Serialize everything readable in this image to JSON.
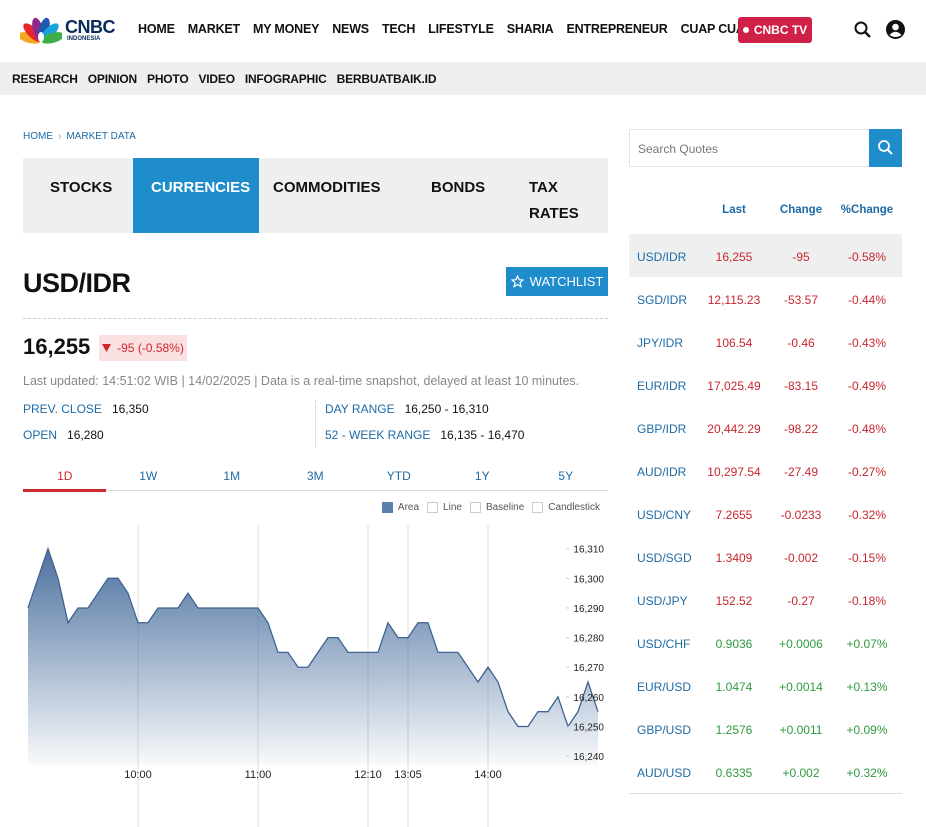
{
  "header": {
    "logo": "CNBC",
    "logo_sub": "INDONESIA",
    "nav": [
      "HOME",
      "MARKET",
      "MY MONEY",
      "NEWS",
      "TECH",
      "LIFESTYLE",
      "SHARIA",
      "ENTREPRENEUR",
      "CUAP CUAP CUAN"
    ],
    "tv_button": "CNBC TV",
    "subnav": [
      "RESEARCH",
      "OPINION",
      "PHOTO",
      "VIDEO",
      "INFOGRAPHIC",
      "BERBUATBAIK.ID"
    ]
  },
  "breadcrumb": [
    "HOME",
    "MARKET DATA"
  ],
  "tabs": [
    "STOCKS",
    "CURRENCIES",
    "COMMODITIES",
    "BONDS",
    "TAX RATES"
  ],
  "active_tab": 1,
  "quote": {
    "symbol": "USD/IDR",
    "watchlist": "WATCHLIST",
    "price": "16,255",
    "change": "-95 (-0.58%)",
    "updated": "Last updated: 14:51:02 WIB | 14/02/2025 | Data is a real-time snapshot, delayed at least 10 minutes.",
    "stats": [
      {
        "label": "PREV. CLOSE",
        "value": "16,350"
      },
      {
        "label": "DAY RANGE",
        "value": "16,250 - 16,310"
      },
      {
        "label": "OPEN",
        "value": "16,280"
      },
      {
        "label": "52 - WEEK RANGE",
        "value": "16,135 - 16,470"
      }
    ]
  },
  "periods": [
    "1D",
    "1W",
    "1M",
    "3M",
    "YTD",
    "1Y",
    "5Y"
  ],
  "active_period": 0,
  "chart_types": [
    "Area",
    "Line",
    "Baseline",
    "Candlestick"
  ],
  "chart_data": {
    "type": "area",
    "color": "#3e6291",
    "categories": [
      null,
      null,
      null,
      null,
      null,
      null,
      null,
      null,
      null,
      null,
      null,
      "10:00",
      null,
      null,
      null,
      null,
      null,
      null,
      null,
      null,
      null,
      null,
      null,
      "11:00",
      null,
      null,
      null,
      null,
      null,
      null,
      null,
      null,
      null,
      null,
      "12:10",
      null,
      null,
      null,
      "13:05",
      null,
      null,
      null,
      null,
      null,
      null,
      null,
      "14:00",
      null,
      null,
      null,
      null,
      null,
      null,
      null,
      null,
      null,
      null,
      null
    ],
    "values": [
      16290,
      16300,
      16310,
      16300,
      16285,
      16290,
      16290,
      16295,
      16300,
      16300,
      16295,
      16285,
      16285,
      16290,
      16290,
      16290,
      16295,
      16290,
      16290,
      16290,
      16290,
      16290,
      16290,
      16290,
      16285,
      16275,
      16275,
      16270,
      16270,
      16275,
      16280,
      16280,
      16275,
      16275,
      16275,
      16275,
      16285,
      16280,
      16280,
      16285,
      16285,
      16275,
      16275,
      16275,
      16270,
      16265,
      16270,
      16265,
      16255,
      16250,
      16250,
      16255,
      16255,
      16260,
      16250,
      16255,
      16265,
      16255
    ],
    "ylim": [
      16237,
      16318
    ],
    "yticks": [
      {
        "value": 16240,
        "label": "16,240"
      },
      {
        "value": 16250,
        "label": "16,250"
      },
      {
        "value": 16260,
        "label": "16,260"
      },
      {
        "value": 16270,
        "label": "16,270"
      },
      {
        "value": 16280,
        "label": "16,280"
      },
      {
        "value": 16290,
        "label": "16,290"
      },
      {
        "value": 16300,
        "label": "16,300"
      },
      {
        "value": 16310,
        "label": "16,310"
      }
    ],
    "grid": false
  },
  "quotes": {
    "search_placeholder": "Search Quotes",
    "columns": [
      "Last",
      "Change",
      "%Change"
    ],
    "rows": [
      [
        "USD/IDR",
        "16,255",
        "-95",
        "-0.58%"
      ],
      [
        "SGD/IDR",
        "12,115.23",
        "-53.57",
        "-0.44%"
      ],
      [
        "JPY/IDR",
        "106.54",
        "-0.46",
        "-0.43%"
      ],
      [
        "EUR/IDR",
        "17,025.49",
        "-83.15",
        "-0.49%"
      ],
      [
        "GBP/IDR",
        "20,442.29",
        "-98.22",
        "-0.48%"
      ],
      [
        "AUD/IDR",
        "10,297.54",
        "-27.49",
        "-0.27%"
      ],
      [
        "USD/CNY",
        "7.2655",
        "-0.0233",
        "-0.32%"
      ],
      [
        "USD/SGD",
        "1.3409",
        "-0.002",
        "-0.15%"
      ],
      [
        "USD/JPY",
        "152.52",
        "-0.27",
        "-0.18%"
      ],
      [
        "USD/CHF",
        "0.9036",
        "+0.0006",
        "+0.07%"
      ],
      [
        "EUR/USD",
        "1.0474",
        "+0.0014",
        "+0.13%"
      ],
      [
        "GBP/USD",
        "1.2576",
        "+0.0011",
        "+0.09%"
      ],
      [
        "AUD/USD",
        "0.6335",
        "+0.002",
        "+0.32%"
      ]
    ]
  }
}
